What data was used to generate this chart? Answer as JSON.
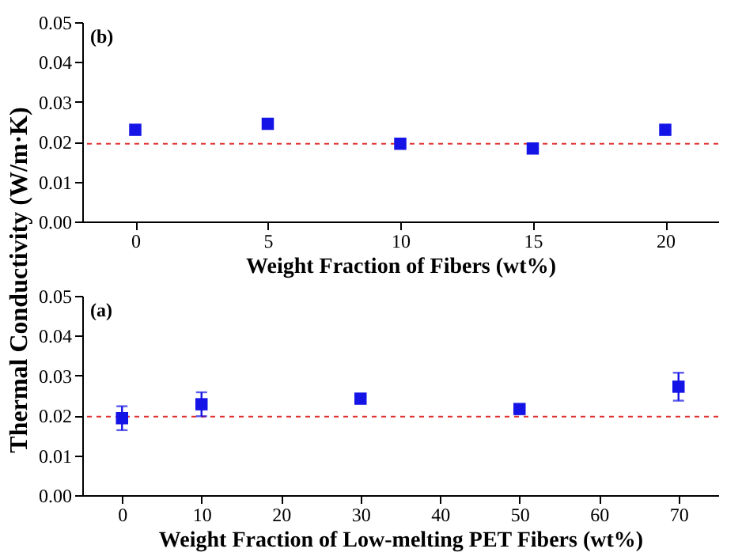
{
  "chart_data": [
    {
      "type": "scatter",
      "ylabel": "Thermal Conductivity (W/m·K)",
      "xlabel": "Weight Fraction of Fibers (wt%)",
      "annotations": [
        "(b)"
      ],
      "marker": "square",
      "grid": false,
      "x": [
        0,
        5,
        10,
        15,
        20
      ],
      "series": [
        {
          "color": "#1414e6",
          "values": [
            0.023,
            0.0245,
            0.0195,
            0.0183,
            0.023
          ]
        }
      ],
      "xlim": [
        -2,
        22
      ],
      "xticks": [
        0,
        5,
        10,
        15,
        20
      ],
      "ylim": [
        0,
        0.05
      ],
      "yticks": [
        {
          "value": 0,
          "label": "0.00"
        },
        {
          "value": 0.01,
          "label": "0.01"
        },
        {
          "value": 0.02,
          "label": "0.02"
        },
        {
          "value": 0.03,
          "label": "0.03"
        },
        {
          "value": 0.04,
          "label": "0.04"
        },
        {
          "value": 0.05,
          "label": "0.05"
        }
      ],
      "ref_lines": [
        {
          "axis": "y",
          "value": 0.0195,
          "color": "#e03030",
          "line_style": "dashed"
        }
      ]
    },
    {
      "type": "scatter",
      "xlabel": "Weight Fraction of Low-melting PET Fibers (wt%)",
      "annotations": [
        "(a)"
      ],
      "marker": "square",
      "grid": false,
      "x": [
        0,
        10,
        30,
        50,
        70
      ],
      "series": [
        {
          "color": "#1414e6",
          "values": [
            0.0193,
            0.0228,
            0.0242,
            0.0216,
            0.0272
          ],
          "errors": [
            0.003,
            0.003,
            0.001,
            0.0005,
            0.0035
          ]
        }
      ],
      "xlim": [
        -5,
        75
      ],
      "xticks": [
        0,
        10,
        20,
        30,
        40,
        50,
        60,
        70
      ],
      "ylim": [
        0,
        0.05
      ],
      "yticks": [
        {
          "value": 0,
          "label": "0.00"
        },
        {
          "value": 0.01,
          "label": "0.01"
        },
        {
          "value": 0.02,
          "label": "0.02"
        },
        {
          "value": 0.03,
          "label": "0.03"
        },
        {
          "value": 0.04,
          "label": "0.04"
        },
        {
          "value": 0.05,
          "label": "0.05"
        }
      ],
      "ref_lines": [
        {
          "axis": "y",
          "value": 0.0197,
          "color": "#e03030",
          "line_style": "dashed"
        }
      ]
    }
  ]
}
